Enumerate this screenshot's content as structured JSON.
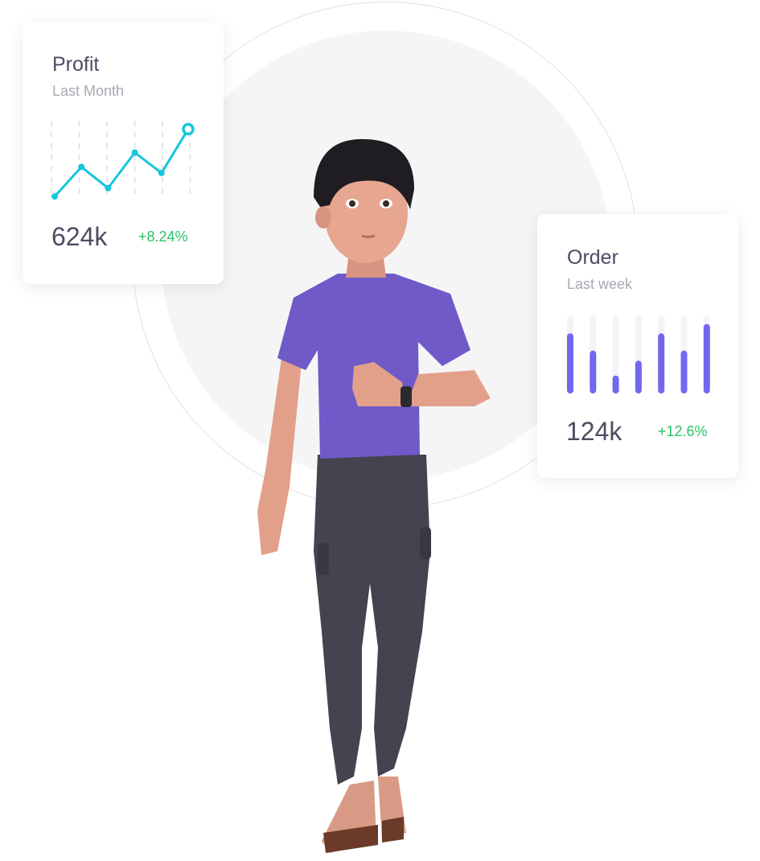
{
  "profit_card": {
    "title": "Profit",
    "subtitle": "Last Month",
    "value": "624k",
    "change": "+8.24%",
    "line_color": "#16c6dc",
    "change_color": "#2dc266"
  },
  "order_card": {
    "title": "Order",
    "subtitle": "Last week",
    "value": "124k",
    "change": "+12.6%",
    "bar_color": "#7367f0",
    "change_color": "#2dc266"
  },
  "chart_data": [
    {
      "type": "line",
      "values": [
        0.02,
        0.41,
        0.13,
        0.6,
        0.33,
        0.91
      ],
      "ylim": [
        0,
        1
      ],
      "grid": "vertical dashed",
      "xlabel": "",
      "ylabel": ""
    },
    {
      "type": "bar",
      "values": [
        0.77,
        0.55,
        0.23,
        0.42,
        0.77,
        0.55,
        0.89
      ],
      "ylim": [
        0,
        1
      ],
      "xlabel": "",
      "ylabel": ""
    }
  ]
}
